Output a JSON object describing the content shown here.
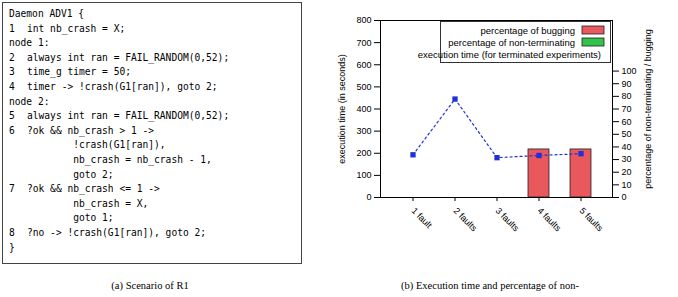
{
  "listing": {
    "lines": [
      {
        "text": "Daemon ADV1 {"
      },
      {
        "num": 1,
        "text": "int nb_crash = X;"
      },
      {
        "text": "node 1:"
      },
      {
        "num": 2,
        "text": "always int ran = FAIL_RANDOM(0,52);"
      },
      {
        "num": 3,
        "text": "time_g timer = 50;"
      },
      {
        "num": 4,
        "text": "timer -> !crash(G1[ran]), goto 2;"
      },
      {
        "text": "node 2:"
      },
      {
        "num": 5,
        "text": "always int ran = FAIL_RANDOM(0,52);"
      },
      {
        "num": 6,
        "text": "?ok && nb_crash > 1 ->"
      },
      {
        "text": "        !crash(G1[ran]),"
      },
      {
        "text": "        nb_crash = nb_crash - 1,"
      },
      {
        "text": "        goto 2;"
      },
      {
        "num": 7,
        "text": "?ok && nb_crash <= 1 ->"
      },
      {
        "text": "        nb_crash = X,"
      },
      {
        "text": "        goto 1;"
      },
      {
        "num": 8,
        "text": "?no -> !crash(G1[ran]), goto 2;"
      },
      {
        "text": "}"
      }
    ]
  },
  "captions": [
    "(a) Scenario of R1",
    "(b) Execution time and percentage of non-"
  ],
  "chart_data": {
    "type": "bar",
    "categories": [
      "1 fault",
      "2 faults",
      "3 faults",
      "4 faults",
      "5 faults"
    ],
    "y_label": "execution time (in seconds)",
    "y2_label": "percentage of non-terminating / bugging",
    "ylim": [
      0,
      800
    ],
    "yticks": [
      0,
      100,
      200,
      300,
      400,
      500,
      600,
      700,
      800
    ],
    "y2lim": [
      0,
      140
    ],
    "y2ticks": [
      0,
      10,
      20,
      30,
      40,
      50,
      60,
      70,
      80,
      90,
      100
    ],
    "grid": false,
    "legend": "top-right",
    "series": [
      {
        "name": "percentage of bugging",
        "type": "bar",
        "axis": "y2",
        "color": "#e8585c",
        "values": [
          0,
          0,
          0,
          38,
          38
        ]
      },
      {
        "name": "percentage of non-terminating",
        "type": "bar",
        "axis": "y2",
        "color": "#33c24a",
        "values": [
          0,
          0,
          0,
          0,
          0
        ]
      },
      {
        "name": "execution time (for terminated experiments)",
        "type": "line",
        "color": "#2030d8",
        "marker": "square",
        "line_style": "dotted",
        "values": [
          193,
          445,
          180,
          190,
          198
        ]
      }
    ]
  }
}
